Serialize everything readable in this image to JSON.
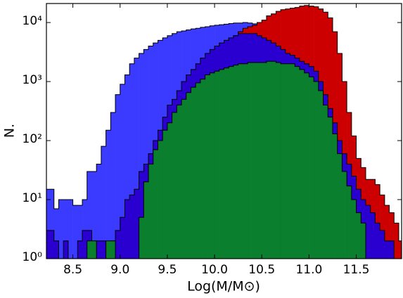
{
  "chart_data": {
    "type": "histogram",
    "xlabel": "Log(M/M⊙)",
    "ylabel": "N.",
    "log_y": true,
    "bins": [
      8.2,
      8.25,
      8.3,
      8.35,
      8.4,
      8.45,
      8.5,
      8.55,
      8.6,
      8.65,
      8.7,
      8.75,
      8.8,
      8.85,
      8.9,
      8.95,
      9.0,
      9.05,
      9.1,
      9.15,
      9.2,
      9.25,
      9.3,
      9.35,
      9.4,
      9.45,
      9.5,
      9.55,
      9.6,
      9.65,
      9.7,
      9.75,
      9.8,
      9.85,
      9.9,
      9.95,
      10.0,
      10.05,
      10.1,
      10.15,
      10.2,
      10.25,
      10.3,
      10.35,
      10.4,
      10.45,
      10.5,
      10.55,
      10.6,
      10.65,
      10.7,
      10.75,
      10.8,
      10.85,
      10.9,
      10.95,
      11.0,
      11.05,
      11.1,
      11.15,
      11.2,
      11.25,
      11.3,
      11.35,
      11.4,
      11.45,
      11.5,
      11.55,
      11.6,
      11.65,
      11.7,
      11.75,
      11.8,
      11.85,
      11.9,
      11.95,
      12.0
    ],
    "series": [
      {
        "color": "#3b3bff",
        "values": [
          15,
          15,
          7,
          10,
          10,
          10,
          8,
          8,
          10,
          30,
          30,
          40,
          80,
          150,
          300,
          600,
          900,
          1300,
          2000,
          2500,
          3000,
          3500,
          4000,
          4500,
          5000,
          5500,
          6000,
          6500,
          7000,
          7200,
          7500,
          7800,
          8000,
          8300,
          8500,
          8800,
          9000,
          9200,
          9400,
          9600,
          9800,
          9800,
          10000,
          9800,
          9500,
          9000,
          8000,
          7000,
          6000,
          5000,
          4000,
          3000,
          2000,
          1500,
          1000,
          700,
          400,
          200,
          120,
          80,
          50,
          30,
          20,
          12,
          8,
          5,
          3,
          2,
          1,
          0,
          0,
          0,
          0,
          0,
          0,
          0
        ]
      },
      {
        "color": "#cc0000",
        "values": [
          0,
          0,
          0,
          0,
          0,
          0,
          0,
          0,
          0,
          0,
          0,
          0,
          0,
          1,
          1,
          2,
          3,
          5,
          8,
          12,
          20,
          30,
          45,
          70,
          100,
          150,
          200,
          300,
          400,
          550,
          700,
          900,
          1200,
          1500,
          1900,
          2400,
          3000,
          3700,
          4500,
          5300,
          6000,
          7000,
          8000,
          8500,
          9000,
          10000,
          11000,
          13000,
          14000,
          15500,
          16500,
          17000,
          17500,
          18000,
          19000,
          19500,
          19000,
          18500,
          17000,
          15000,
          12000,
          7000,
          3000,
          1000,
          300,
          120,
          50,
          35,
          22,
          22,
          18,
          12,
          8,
          6,
          4,
          2
        ]
      },
      {
        "color": "#2a00d0",
        "values": [
          3,
          3,
          2,
          1,
          2,
          1,
          1,
          2,
          3,
          3,
          2,
          2,
          2,
          1,
          2,
          3,
          5,
          10,
          12,
          15,
          30,
          40,
          60,
          100,
          150,
          250,
          400,
          500,
          700,
          1000,
          1300,
          1600,
          2000,
          2500,
          3000,
          3500,
          4000,
          4500,
          5000,
          5500,
          6000,
          6500,
          6500,
          6500,
          6500,
          6000,
          5500,
          5000,
          4500,
          4000,
          3500,
          3000,
          2800,
          2500,
          2200,
          2000,
          1800,
          1500,
          1000,
          600,
          350,
          200,
          100,
          60,
          40,
          25,
          15,
          10,
          8,
          6,
          4,
          3,
          2,
          2,
          1,
          1
        ]
      },
      {
        "color": "#0a7f2e",
        "values": [
          0,
          0,
          0,
          0,
          0,
          0,
          0,
          0,
          0,
          2,
          2,
          0,
          0,
          2,
          2,
          0,
          0,
          0,
          0,
          0,
          5,
          20,
          40,
          70,
          100,
          150,
          200,
          300,
          400,
          500,
          650,
          800,
          950,
          1100,
          1300,
          1400,
          1500,
          1600,
          1700,
          1800,
          1900,
          2000,
          2000,
          2100,
          2100,
          2100,
          2100,
          2200,
          2200,
          2100,
          2000,
          2000,
          2000,
          1800,
          1600,
          1400,
          1200,
          1000,
          700,
          400,
          250,
          130,
          60,
          30,
          17,
          10,
          6,
          4,
          0,
          0,
          0,
          0,
          0,
          0,
          0,
          0
        ]
      }
    ],
    "xlim": [
      8.22,
      11.98
    ],
    "ylim": [
      1,
      21000
    ],
    "xticks": [
      8.5,
      {
        "value": 9.0,
        "label": "9.0"
      },
      9.5,
      {
        "value": 10.0,
        "label": "10.0"
      },
      10.5,
      {
        "value": 11.0,
        "label": "11.0"
      },
      11.5
    ],
    "yticks": [
      {
        "value": 1,
        "label": "10⁰"
      },
      {
        "value": 10,
        "label": "10¹"
      },
      {
        "value": 100,
        "label": "10²"
      },
      {
        "value": 1000,
        "label": "10³"
      },
      {
        "value": 10000,
        "label": "10⁴"
      }
    ]
  }
}
